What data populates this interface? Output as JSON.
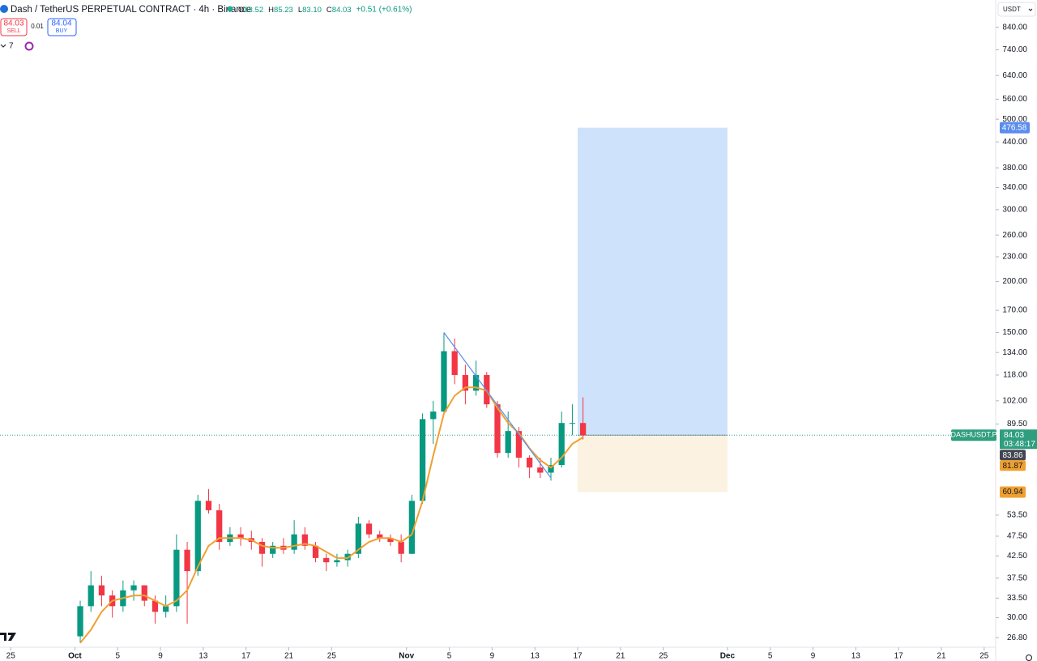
{
  "header": {
    "symbol": "Dash / TetherUS PERPETUAL CONTRACT · 4h · Binance",
    "ohlc": [
      {
        "label": "O",
        "value": "83.52"
      },
      {
        "label": "H",
        "value": "85.23"
      },
      {
        "label": "L",
        "value": "83.10"
      },
      {
        "label": "C",
        "value": "84.03"
      }
    ],
    "change": "+0.51 (+0.61%)"
  },
  "trade": {
    "sell_price": "84.03",
    "sell": "SELL",
    "spread": "0.01",
    "buy_price": "84.04",
    "buy": "BUY"
  },
  "indicators_count": "7",
  "currency": "USDT",
  "chart_data": {
    "type": "candlestick",
    "log_scale": true,
    "up_color": "#089981",
    "down_color": "#f23645",
    "x": [
      "10-01",
      "10-02",
      "10-03",
      "10-04",
      "10-05",
      "10-06",
      "10-07",
      "10-08",
      "10-09",
      "10-10",
      "10-11",
      "10-12",
      "10-13",
      "10-14",
      "10-15",
      "10-16",
      "10-17",
      "10-18",
      "10-19",
      "10-20",
      "10-21",
      "10-22",
      "10-23",
      "10-24",
      "10-25",
      "10-26",
      "10-27",
      "10-28",
      "10-29",
      "10-30",
      "10-31",
      "11-01",
      "11-02",
      "11-03",
      "11-04",
      "11-05",
      "11-06",
      "11-07",
      "11-08",
      "11-09",
      "11-10",
      "11-11",
      "11-12",
      "11-13",
      "11-14",
      "11-15",
      "11-16",
      "11-17"
    ],
    "open": [
      27,
      32,
      36,
      34,
      32,
      35,
      36,
      33,
      31,
      32,
      44,
      39,
      58,
      55,
      46,
      48,
      47,
      46,
      43,
      45,
      44,
      48,
      45,
      42,
      41,
      41.5,
      43,
      51,
      48,
      47,
      46,
      43,
      58,
      92,
      96,
      135,
      118,
      108,
      118,
      100,
      76,
      86,
      74,
      70,
      68,
      71,
      90,
      90
    ],
    "high": [
      33,
      39,
      38,
      35,
      37,
      37,
      36,
      34,
      34,
      48,
      46,
      60,
      62,
      57,
      50,
      50,
      49,
      47,
      46,
      47,
      52,
      50,
      46,
      43,
      43,
      44,
      53,
      52,
      49,
      48,
      48,
      60,
      95,
      102,
      150,
      145,
      125,
      128,
      120,
      102,
      96,
      88,
      75,
      74,
      74,
      96,
      100,
      104
    ],
    "low": [
      26,
      31,
      32,
      30,
      31,
      33,
      32,
      29,
      30,
      31,
      29,
      38,
      54,
      44,
      45,
      45,
      44,
      40,
      42,
      43,
      43,
      44,
      41,
      39,
      40,
      40,
      42,
      47,
      46,
      45,
      41,
      43,
      57,
      80,
      95,
      112,
      100,
      105,
      98,
      74,
      74,
      70,
      66,
      66,
      65,
      70,
      84,
      82
    ],
    "close": [
      32,
      36,
      34,
      32,
      35,
      36,
      33,
      31,
      32,
      44,
      39,
      58,
      55,
      46,
      48,
      47,
      46,
      43,
      45,
      44,
      48,
      45,
      42,
      41,
      41.5,
      43,
      51,
      48,
      47,
      46,
      43,
      58,
      92,
      96,
      135,
      118,
      108,
      118,
      100,
      76,
      86,
      74,
      70,
      68,
      71,
      90,
      90,
      84.03
    ],
    "moving_average": {
      "color": "#f0a030",
      "values": [
        26,
        28,
        31,
        33,
        33.5,
        34,
        34,
        33,
        32,
        33,
        35,
        40,
        45,
        47,
        47,
        47,
        46.5,
        45,
        44.5,
        44.5,
        45,
        45.5,
        45,
        43.5,
        42,
        42,
        44,
        46,
        47,
        47,
        46,
        48,
        58,
        75,
        95,
        105,
        110,
        110,
        108,
        98,
        90,
        85,
        78,
        73,
        70,
        74,
        80,
        83
      ]
    },
    "trend_line": {
      "color": "#5b8def",
      "x": [
        "11-04",
        "11-14"
      ],
      "y": [
        150,
        66
      ]
    },
    "position": {
      "x": [
        "11-17",
        "12-01"
      ],
      "entry": 84.03,
      "target": 476.58,
      "stop": 60.94,
      "target_color": "#cfe2fb",
      "stop_color": "#fbf2e2"
    },
    "ylim": [
      25.5,
      980
    ],
    "yticks": [
      {
        "value": 840,
        "label": "840.00"
      },
      {
        "value": 740,
        "label": "740.00"
      },
      {
        "value": 640,
        "label": "640.00"
      },
      {
        "value": 560,
        "label": "560.00"
      },
      {
        "value": 500,
        "label": "500.00"
      },
      {
        "value": 440,
        "label": "440.00"
      },
      {
        "value": 380,
        "label": "380.00"
      },
      {
        "value": 340,
        "label": "340.00"
      },
      {
        "value": 300,
        "label": "300.00"
      },
      {
        "value": 260,
        "label": "260.00"
      },
      {
        "value": 230,
        "label": "230.00"
      },
      {
        "value": 200,
        "label": "200.00"
      },
      {
        "value": 170,
        "label": "170.00"
      },
      {
        "value": 150,
        "label": "150.00"
      },
      {
        "value": 134,
        "label": "134.00"
      },
      {
        "value": 118,
        "label": "118.00"
      },
      {
        "value": 102,
        "label": "102.00"
      },
      {
        "value": 89.5,
        "label": "89.50"
      },
      {
        "value": 53.5,
        "label": "53.50"
      },
      {
        "value": 47.5,
        "label": "47.50"
      },
      {
        "value": 42.5,
        "label": "42.50"
      },
      {
        "value": 37.5,
        "label": "37.50"
      },
      {
        "value": 33.5,
        "label": "33.50"
      },
      {
        "value": 30,
        "label": "30.00"
      },
      {
        "value": 26.8,
        "label": "26.80"
      }
    ],
    "xlim": [
      "09-24",
      "12-26"
    ],
    "xticks": [
      {
        "value": "09-25",
        "label": "25"
      },
      {
        "value": "10-01",
        "label": "Oct"
      },
      {
        "value": "10-05",
        "label": "5"
      },
      {
        "value": "10-09",
        "label": "9"
      },
      {
        "value": "10-13",
        "label": "13"
      },
      {
        "value": "10-17",
        "label": "17"
      },
      {
        "value": "10-21",
        "label": "21"
      },
      {
        "value": "10-25",
        "label": "25"
      },
      {
        "value": "11-01",
        "label": "Nov"
      },
      {
        "value": "11-05",
        "label": "5"
      },
      {
        "value": "11-09",
        "label": "9"
      },
      {
        "value": "11-13",
        "label": "13"
      },
      {
        "value": "11-17",
        "label": "17"
      },
      {
        "value": "11-21",
        "label": "21"
      },
      {
        "value": "11-25",
        "label": "25"
      },
      {
        "value": "12-01",
        "label": "Dec"
      },
      {
        "value": "12-05",
        "label": "5"
      },
      {
        "value": "12-09",
        "label": "9"
      },
      {
        "value": "12-13",
        "label": "13"
      },
      {
        "value": "12-17",
        "label": "17"
      },
      {
        "value": "12-21",
        "label": "21"
      },
      {
        "value": "12-25",
        "label": "25"
      }
    ],
    "price_labels": {
      "symbol": "DASHUSDT.P",
      "last": {
        "value": 84.03,
        "label": "84.03"
      },
      "countdown": "03:48:17",
      "ma_a": {
        "value": 83.86,
        "label": "83.86"
      },
      "ma_b": {
        "value": 81.87,
        "label": "81.87"
      }
    }
  }
}
